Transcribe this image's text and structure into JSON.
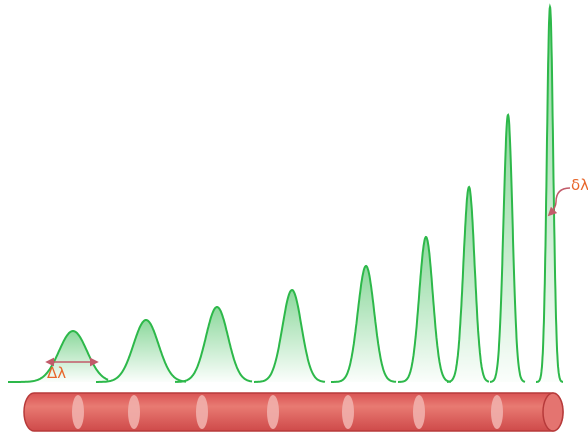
{
  "labels": {
    "wide_width": "Δλ",
    "narrow_width": "δλ"
  },
  "colors": {
    "curve": "#2db84a",
    "fill": "#2db84a",
    "cylinder": "#e06262",
    "cylinder_edge": "#b73a3a",
    "ellipse": "#f1b0ac",
    "label": "#e8662a",
    "arrow": "#c25b6a"
  }
}
